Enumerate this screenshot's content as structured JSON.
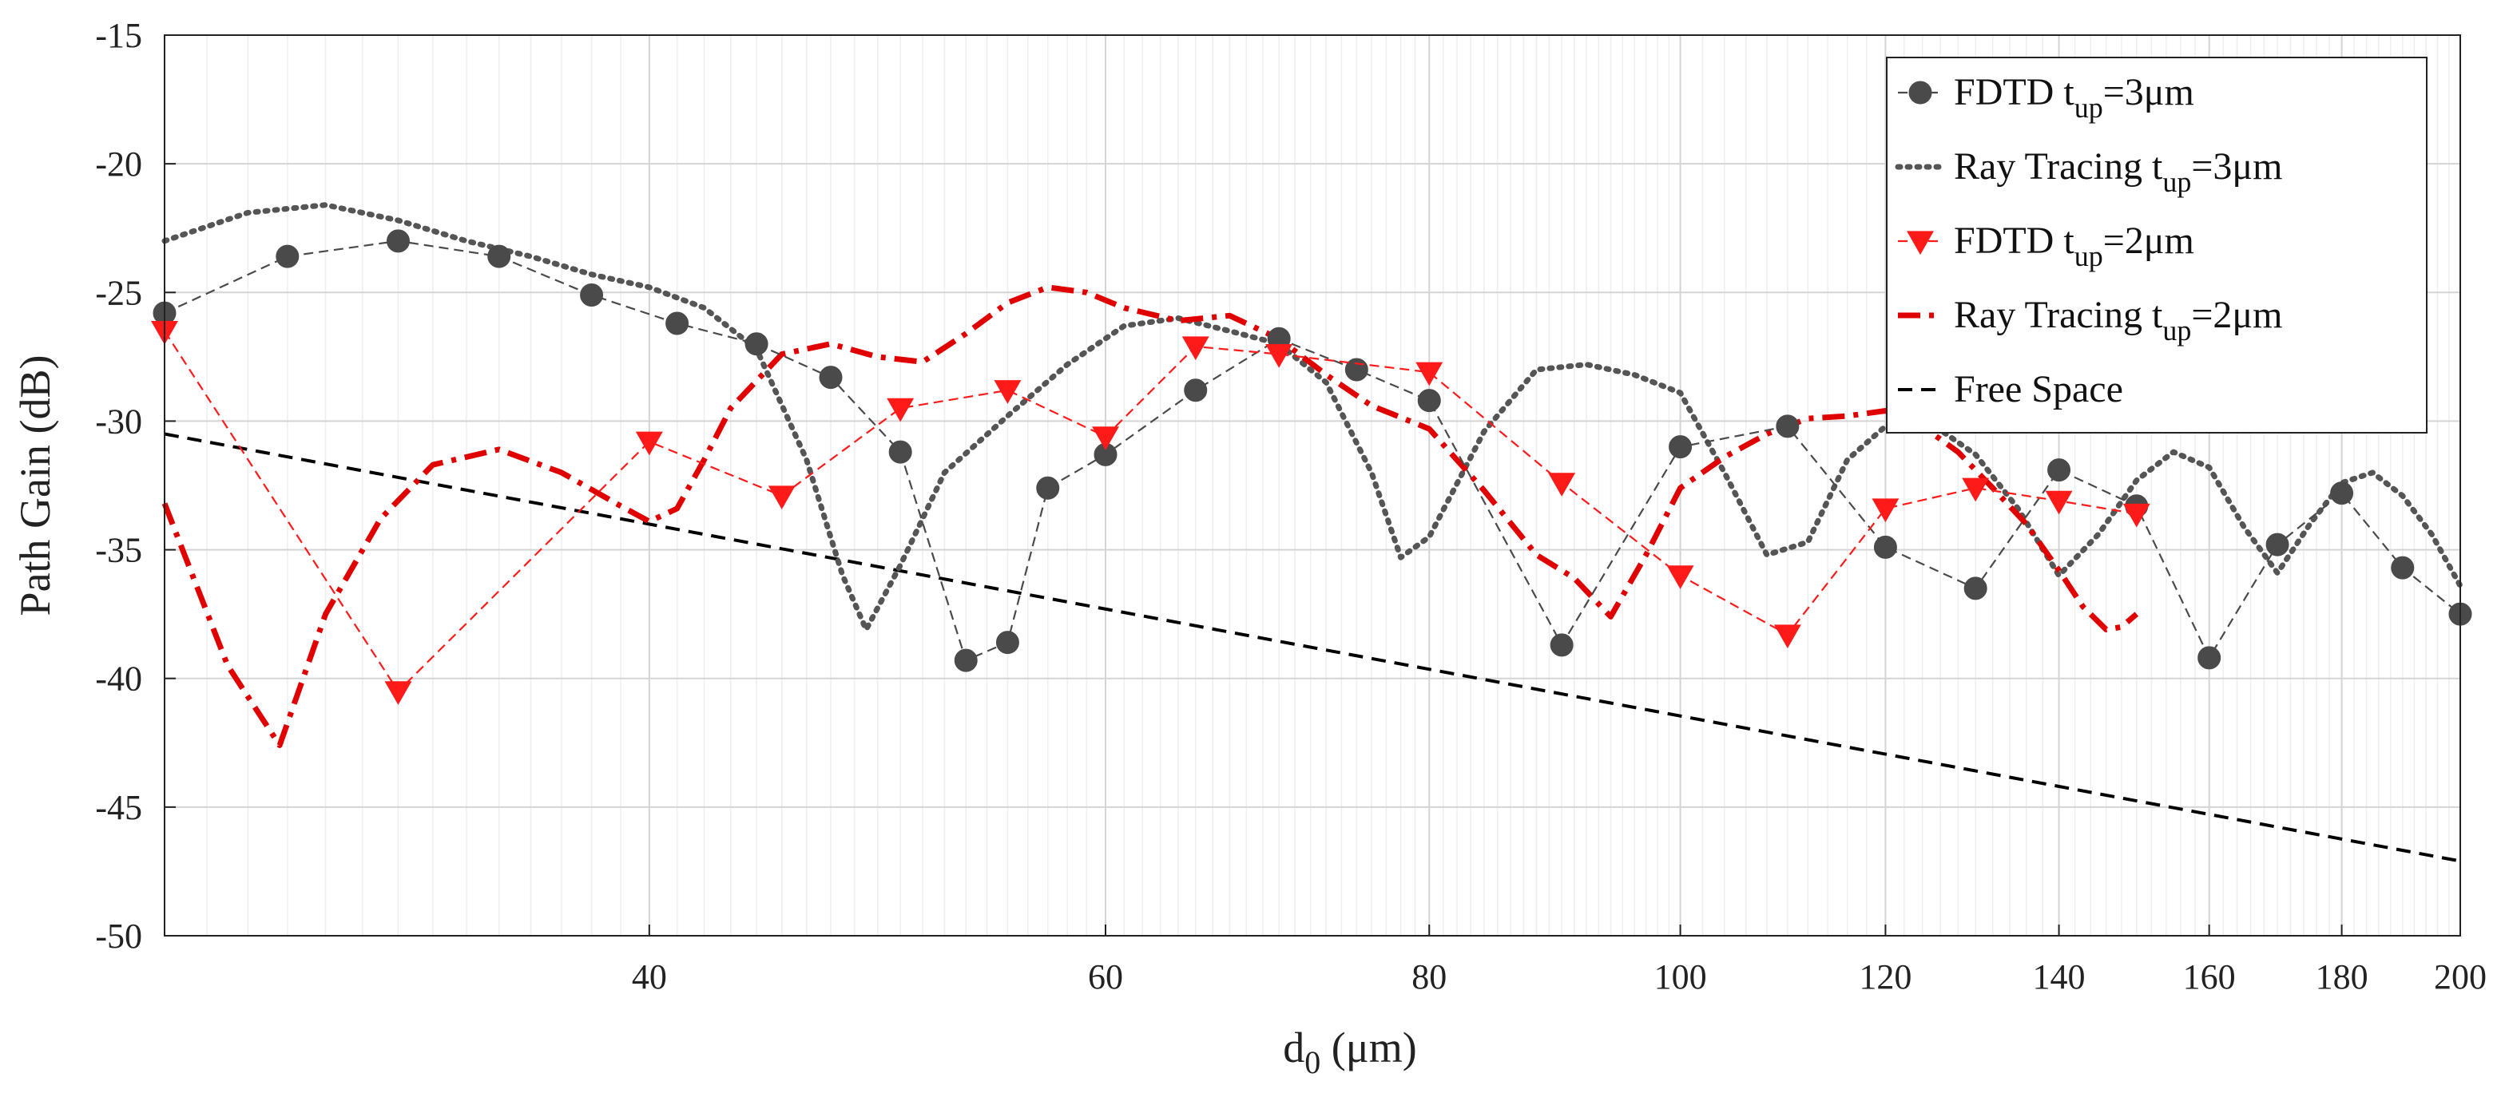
{
  "chart_data": {
    "type": "line",
    "title": "",
    "xlabel": "d",
    "xlabel_sub": "0",
    "xlabel_unit": " (μm)",
    "ylabel": "Path Gain (dB)",
    "xscale": "log",
    "xlim": [
      26,
      200
    ],
    "ylim": [
      -50,
      -15
    ],
    "grid": true,
    "legend_position": "top-right",
    "xticks": [
      40,
      60,
      80,
      100,
      120,
      140,
      160,
      180,
      200
    ],
    "xtick_labels": [
      "40",
      "60",
      "80",
      "100",
      "120",
      "140",
      "160",
      "180",
      "200"
    ],
    "yticks": [
      -50,
      -45,
      -40,
      -35,
      -30,
      -25,
      -20,
      -15
    ],
    "ytick_labels": [
      "-50",
      "-45",
      "-40",
      "-35",
      "-30",
      "-25",
      "-20",
      "-15"
    ],
    "series": [
      {
        "id": "fdtd3",
        "name": "FDTD t",
        "name_sub": "up",
        "name_suffix": "=3μm",
        "color": "#4a4a4a",
        "marker": "circle",
        "style": "dashed-thin",
        "x": [
          26,
          29,
          32,
          35,
          38,
          41,
          44,
          47,
          50,
          53,
          55,
          57,
          60,
          65,
          70,
          75,
          80,
          90,
          100,
          110,
          120,
          130,
          140,
          150,
          160,
          170,
          180,
          190,
          200
        ],
        "y": [
          -25.8,
          -23.6,
          -23.0,
          -23.6,
          -25.1,
          -26.2,
          -27.0,
          -28.3,
          -31.2,
          -39.3,
          -38.6,
          -32.6,
          -31.3,
          -28.8,
          -26.8,
          -28.0,
          -29.2,
          -38.7,
          -31.0,
          -30.2,
          -34.9,
          -36.5,
          -31.9,
          -33.3,
          -39.2,
          -34.8,
          -32.8,
          -35.7,
          -37.5
        ]
      },
      {
        "id": "ray3",
        "name": "Ray Tracing t",
        "name_sub": "up",
        "name_suffix": "=3μm",
        "color": "#555555",
        "marker": "none",
        "style": "dotted-thick",
        "x": [
          26,
          28,
          30,
          32,
          34,
          36,
          38,
          40,
          42,
          44,
          46,
          47.5,
          48.5,
          50,
          52,
          55,
          58,
          61,
          64,
          67,
          70,
          73,
          76,
          78,
          80,
          84,
          88,
          92,
          96,
          100,
          104,
          108,
          112,
          116,
          120,
          125,
          130,
          135,
          140,
          145,
          150,
          155,
          160,
          165,
          170,
          175,
          180,
          185,
          190,
          195,
          200
        ],
        "y": [
          -23.0,
          -21.9,
          -21.6,
          -22.2,
          -23.0,
          -23.6,
          -24.3,
          -24.8,
          -25.6,
          -27.2,
          -31.5,
          -36.0,
          -38.1,
          -35.6,
          -32.0,
          -29.8,
          -27.8,
          -26.3,
          -26.0,
          -26.5,
          -27.0,
          -28.5,
          -32.0,
          -35.3,
          -34.5,
          -30.4,
          -28.0,
          -27.8,
          -28.2,
          -28.9,
          -32.0,
          -35.2,
          -34.7,
          -31.5,
          -30.2,
          -30.1,
          -31.3,
          -33.4,
          -36.0,
          -34.4,
          -32.3,
          -31.2,
          -31.8,
          -34.1,
          -35.9,
          -34.0,
          -32.4,
          -32.0,
          -32.9,
          -34.4,
          -36.4
        ]
      },
      {
        "id": "fdtd2",
        "name": "FDTD t",
        "name_sub": "up",
        "name_suffix": "=2μm",
        "color": "#ff1a1a",
        "marker": "triangle-down",
        "style": "dashed-thin",
        "x": [
          26,
          32,
          40,
          45,
          50,
          55,
          60,
          65,
          70,
          80,
          90,
          100,
          110,
          120,
          130,
          140,
          150
        ],
        "y": [
          -26.5,
          -40.5,
          -30.8,
          -32.9,
          -29.5,
          -28.8,
          -30.6,
          -27.1,
          -27.4,
          -28.1,
          -32.4,
          -36.0,
          -38.3,
          -33.4,
          -32.6,
          -33.1,
          -33.6
        ]
      },
      {
        "id": "ray2",
        "name": "Ray Tracing t",
        "name_sub": "up",
        "name_suffix": "=2μm",
        "color": "#e00000",
        "marker": "none",
        "style": "dashdot-thick",
        "x": [
          26,
          27.5,
          28.8,
          30,
          31.5,
          33,
          35,
          37,
          39,
          40,
          41,
          42,
          43,
          45,
          47,
          49,
          51,
          53,
          55,
          57,
          59,
          61,
          64,
          67,
          70,
          73,
          76,
          80,
          84,
          88,
          91,
          94,
          97,
          100,
          104,
          108,
          112,
          116,
          120,
          124,
          128,
          132,
          136,
          140,
          143,
          146,
          148,
          150
        ],
        "y": [
          -33.2,
          -39.5,
          -42.6,
          -37.5,
          -33.8,
          -31.7,
          -31.1,
          -32.0,
          -33.3,
          -33.9,
          -33.4,
          -31.5,
          -29.5,
          -27.4,
          -27.0,
          -27.5,
          -27.7,
          -26.6,
          -25.4,
          -24.8,
          -25.0,
          -25.6,
          -26.1,
          -25.9,
          -26.8,
          -28.2,
          -29.4,
          -30.3,
          -32.7,
          -35.2,
          -36.1,
          -37.6,
          -35.2,
          -32.6,
          -31.4,
          -30.5,
          -29.9,
          -29.8,
          -29.6,
          -30.2,
          -31.2,
          -32.6,
          -34.0,
          -35.8,
          -37.2,
          -38.1,
          -38.0,
          -37.5
        ]
      },
      {
        "id": "free",
        "name": "Free Space",
        "name_sub": "",
        "name_suffix": "",
        "color": "#000000",
        "marker": "none",
        "style": "dashed-medium",
        "x": [
          26,
          200
        ],
        "y": [
          -30.5,
          -47.1
        ]
      }
    ]
  }
}
